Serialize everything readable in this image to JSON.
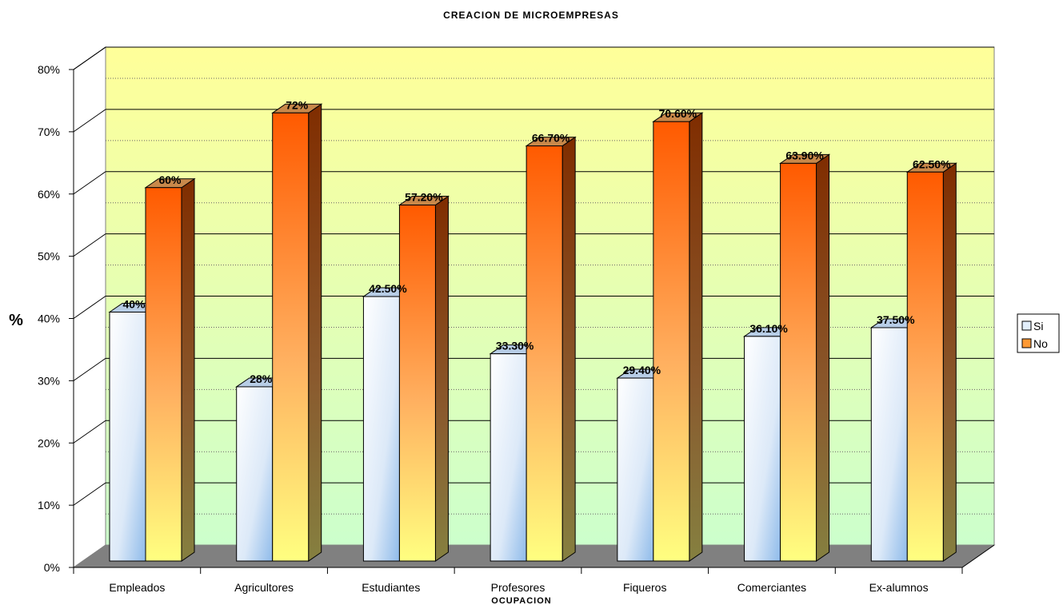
{
  "chart_data": {
    "type": "bar",
    "title": "CREACION DE MICROEMPRESAS",
    "xlabel": "OCUPACION",
    "ylabel": "%",
    "ylim": [
      0,
      80
    ],
    "ytick_step": 10,
    "ytick_labels": [
      "0%",
      "10%",
      "20%",
      "30%",
      "40%",
      "50%",
      "60%",
      "70%",
      "80%"
    ],
    "categories": [
      "Empleados",
      "Agricultores",
      "Estudiantes",
      "Profesores",
      "Fiqueros",
      "Comerciantes",
      "Ex-alumnos"
    ],
    "series": [
      {
        "name": "Si",
        "values": [
          40,
          28,
          42.5,
          33.3,
          29.4,
          36.1,
          37.5
        ],
        "labels": [
          "40%",
          "28%",
          "42.50%",
          "33.30%",
          "29.40%",
          "36.10%",
          "37.50%"
        ]
      },
      {
        "name": "No",
        "values": [
          60,
          72,
          57.2,
          66.7,
          70.6,
          63.9,
          62.5
        ],
        "labels": [
          "60%",
          "72%",
          "57.20%",
          "66.70%",
          "70.60%",
          "63.90%",
          "62.50%"
        ]
      }
    ],
    "legend": "right",
    "grid": true,
    "colors": {
      "si_front": "#e2eefb",
      "no_front_top": "#ff5a00",
      "no_front_bottom": "#ffff80",
      "floor": "#808080",
      "wall_top": "#ffff99",
      "wall_bottom": "#ccffcc"
    }
  }
}
